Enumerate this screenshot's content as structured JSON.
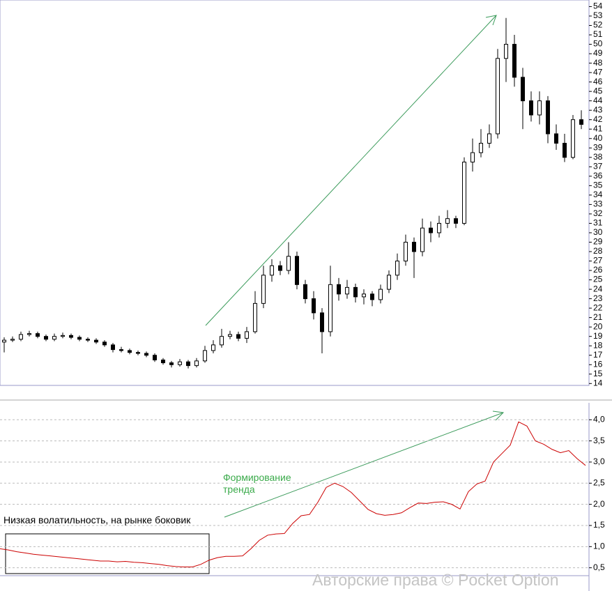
{
  "watermark": "Авторские права © Pocket Option",
  "chart_data": [
    {
      "type": "candlestick",
      "up_color": "#ffffff",
      "down_color": "#000000",
      "open": [
        18.4,
        18.6,
        18.7,
        19.2,
        19.3,
        19.0,
        18.7,
        19.0,
        19.1,
        18.9,
        18.7,
        18.6,
        18.4,
        18.1,
        17.6,
        17.5,
        17.3,
        17.2,
        17.0,
        16.5,
        16.2,
        16.0,
        16.3,
        15.9,
        16.4,
        17.5,
        18.1,
        19.0,
        19.2,
        18.8,
        19.5,
        22.5,
        25.5,
        26.5,
        26.0,
        27.5,
        24.5,
        23.0,
        21.5,
        19.5,
        24.5,
        23.5,
        24.2,
        23.2,
        23.5,
        22.9,
        24.0,
        25.5,
        27.0,
        29.0,
        28.0,
        30.5,
        30.0,
        31.0,
        31.5,
        31.0,
        37.5,
        38.5,
        39.5,
        40.5,
        48.5,
        50.0,
        46.5,
        44.0,
        42.5,
        44.0,
        40.5,
        39.5,
        38.0,
        42.0
      ],
      "high": [
        18.9,
        19.0,
        19.5,
        19.6,
        19.5,
        19.2,
        19.3,
        19.4,
        19.3,
        19.1,
        18.9,
        18.8,
        18.6,
        18.3,
        17.9,
        17.7,
        17.5,
        17.4,
        17.2,
        16.7,
        16.4,
        16.6,
        16.5,
        16.7,
        18.0,
        18.6,
        19.8,
        19.6,
        19.5,
        20.0,
        23.8,
        26.5,
        27.2,
        27.0,
        29.0,
        28.0,
        25.0,
        23.8,
        22.0,
        26.5,
        25.2,
        25.0,
        24.6,
        24.0,
        23.8,
        24.5,
        26.0,
        27.8,
        29.8,
        29.5,
        31.5,
        31.2,
        31.8,
        32.4,
        31.8,
        38.0,
        40.0,
        41.0,
        41.5,
        49.5,
        52.8,
        51.0,
        47.5,
        45.0,
        45.0,
        44.5,
        41.5,
        40.5,
        42.5,
        43.0
      ],
      "low": [
        17.3,
        18.4,
        18.5,
        19.0,
        18.8,
        18.5,
        18.5,
        18.8,
        18.7,
        18.5,
        18.4,
        18.2,
        17.9,
        17.3,
        17.3,
        17.1,
        17.0,
        16.8,
        16.3,
        16.0,
        15.7,
        15.8,
        15.6,
        15.7,
        16.2,
        17.2,
        17.8,
        18.7,
        18.5,
        18.3,
        19.3,
        22.0,
        24.8,
        25.5,
        25.6,
        24.0,
        22.5,
        20.8,
        17.2,
        19.0,
        22.8,
        23.0,
        22.6,
        22.4,
        22.2,
        22.5,
        23.6,
        25.0,
        26.5,
        25.2,
        27.5,
        29.0,
        29.5,
        30.5,
        30.5,
        30.8,
        36.5,
        38.0,
        39.0,
        40.0,
        46.0,
        45.5,
        41.0,
        41.8,
        41.5,
        39.5,
        38.8,
        37.5,
        37.8,
        41.0
      ],
      "close": [
        18.6,
        18.7,
        19.2,
        19.3,
        19.0,
        18.7,
        19.0,
        19.1,
        18.9,
        18.7,
        18.6,
        18.4,
        18.1,
        17.6,
        17.5,
        17.3,
        17.2,
        17.0,
        16.5,
        16.2,
        16.0,
        16.3,
        15.9,
        16.4,
        17.5,
        18.1,
        19.0,
        19.2,
        18.8,
        19.5,
        22.5,
        25.5,
        26.5,
        26.0,
        27.5,
        24.5,
        23.0,
        21.5,
        19.5,
        24.5,
        23.5,
        24.2,
        23.2,
        23.5,
        22.9,
        24.0,
        25.5,
        27.0,
        29.0,
        28.0,
        30.5,
        30.0,
        31.0,
        31.5,
        31.0,
        37.5,
        38.5,
        39.5,
        40.5,
        48.5,
        50.0,
        46.5,
        44.0,
        42.5,
        44.0,
        40.5,
        39.5,
        38.0,
        42.0,
        41.5
      ],
      "ylim": [
        13.8,
        54.7
      ],
      "yticks": [
        14,
        15,
        16,
        17,
        18,
        19,
        20,
        21,
        22,
        23,
        24,
        25,
        26,
        27,
        28,
        29,
        30,
        31,
        32,
        33,
        34,
        35,
        36,
        37,
        38,
        39,
        40,
        41,
        42,
        43,
        44,
        45,
        46,
        47,
        48,
        49,
        50,
        51,
        52,
        53,
        54
      ]
    },
    {
      "type": "line",
      "color": "#cc0000",
      "grid": true,
      "annotations": [
        "Формирование тренда",
        "Низкая волатильность, на рынке боковик"
      ],
      "values": [
        0.95,
        0.92,
        0.88,
        0.85,
        0.82,
        0.8,
        0.78,
        0.76,
        0.74,
        0.72,
        0.7,
        0.68,
        0.66,
        0.66,
        0.64,
        0.65,
        0.63,
        0.62,
        0.6,
        0.58,
        0.55,
        0.53,
        0.52,
        0.52,
        0.58,
        0.68,
        0.74,
        0.77,
        0.77,
        0.78,
        0.95,
        1.15,
        1.27,
        1.3,
        1.31,
        1.55,
        1.73,
        1.76,
        2.05,
        2.4,
        2.5,
        2.42,
        2.28,
        2.08,
        1.88,
        1.78,
        1.74,
        1.76,
        1.8,
        1.92,
        2.03,
        2.02,
        2.05,
        2.06,
        2.0,
        1.89,
        2.3,
        2.48,
        2.55,
        3.0,
        3.2,
        3.4,
        3.95,
        3.85,
        3.5,
        3.42,
        3.3,
        3.22,
        3.27,
        3.08,
        2.92
      ],
      "ylim": [
        0,
        4.4
      ],
      "yticks": [
        {
          "value": 0.5,
          "label": "0,5"
        },
        {
          "value": 1.0,
          "label": "1,0"
        },
        {
          "value": 1.5,
          "label": "1,5"
        },
        {
          "value": 2.0,
          "label": "2,0"
        },
        {
          "value": 2.5,
          "label": "2,5"
        },
        {
          "value": 3.0,
          "label": "3,0"
        },
        {
          "value": 3.5,
          "label": "3,5"
        },
        {
          "value": 4.0,
          "label": "4,0"
        }
      ]
    }
  ]
}
